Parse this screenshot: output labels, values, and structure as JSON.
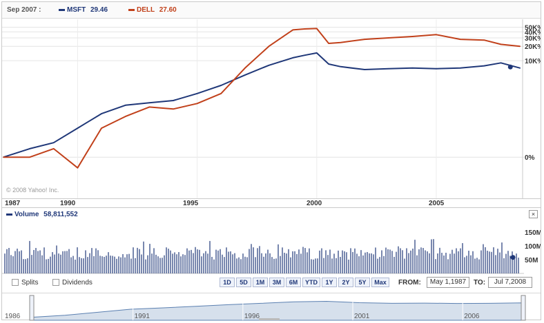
{
  "legend": {
    "date": "Sep 2007 :",
    "series": [
      {
        "ticker": "MSFT",
        "value": "29.46",
        "color": "#1f3778"
      },
      {
        "ticker": "DELL",
        "value": "27.60",
        "color": "#c1401a"
      }
    ]
  },
  "price_axis": {
    "labels": [
      "50K%",
      "40K%",
      "30K%",
      "20K%",
      "10K%",
      "0%"
    ]
  },
  "copyright": "© 2008 Yahoo! Inc.",
  "time_axis": {
    "labels": [
      "1987",
      "1990",
      "1995",
      "2000",
      "2005"
    ]
  },
  "volume": {
    "label": "Volume",
    "value": "58,811,552",
    "axis_labels": [
      "150M",
      "100M",
      "50M"
    ],
    "close_label": "×"
  },
  "controls": {
    "checkboxes": [
      {
        "label": "Splits",
        "checked": false
      },
      {
        "label": "Dividends",
        "checked": false
      }
    ],
    "range_buttons": [
      "1D",
      "5D",
      "1M",
      "3M",
      "6M",
      "YTD",
      "1Y",
      "2Y",
      "5Y",
      "Max"
    ],
    "from_label": "FROM:",
    "from_value": "May 1,1987",
    "to_label": "TO:",
    "to_value": "Jul 7,2008"
  },
  "navigator": {
    "labels": [
      "1986",
      "1991",
      "1996",
      "2001",
      "2006"
    ]
  },
  "colors": {
    "msft": "#1f3778",
    "dell": "#c1401a",
    "volume": "#1f3778",
    "navigator_fill": "#d6e0ec"
  },
  "chart_data": {
    "type": "line",
    "x": [
      1986.9,
      1988,
      1989,
      1990,
      1991,
      1992,
      1993,
      1994,
      1995,
      1996,
      1997,
      1998,
      1999,
      1999.5,
      2000,
      2000.5,
      2001,
      2002,
      2003,
      2004,
      2005,
      2006,
      2007,
      2007.7,
      2008.5
    ],
    "y_scale": "log",
    "series": [
      {
        "name": "MSFT",
        "values": [
          0,
          50,
          100,
          300,
          700,
          1100,
          1250,
          1400,
          2000,
          3000,
          5000,
          8000,
          11500,
          13000,
          14500,
          8500,
          7500,
          6500,
          6800,
          7000,
          6800,
          7000,
          7800,
          9000,
          7000
        ]
      },
      {
        "name": "DELL",
        "values": [
          0,
          0,
          50,
          -40,
          300,
          600,
          1000,
          900,
          1200,
          2000,
          7000,
          20000,
          44000,
          46000,
          47000,
          23000,
          24000,
          28000,
          30000,
          32000,
          35000,
          28000,
          27000,
          22000,
          20000
        ]
      }
    ]
  }
}
